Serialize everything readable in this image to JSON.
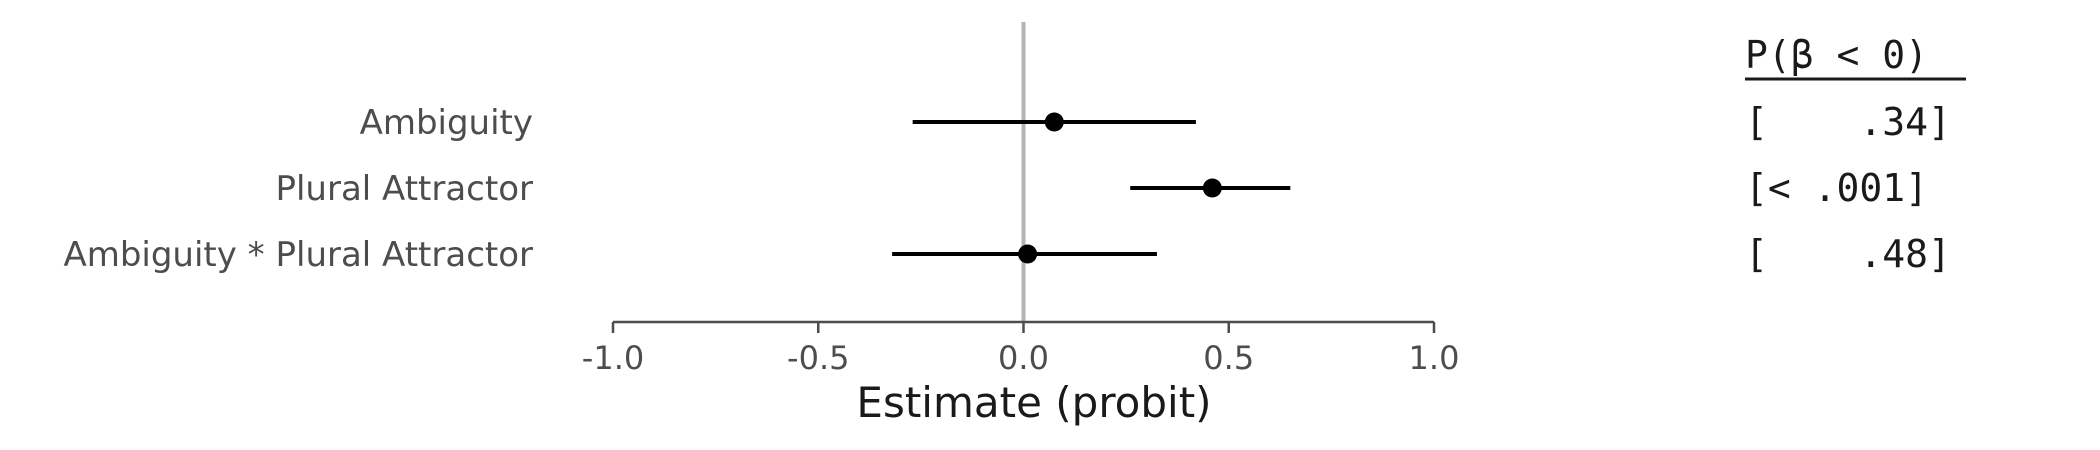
{
  "chart_data": {
    "type": "scatter",
    "subtype": "coefficient-plot",
    "xlabel": "Estimate (probit)",
    "xlim": [
      -1.0,
      1.0
    ],
    "xticks": [
      -1.0,
      -0.5,
      0.0,
      0.5,
      1.0
    ],
    "xtick_labels": [
      "-1.0",
      "-0.5",
      "0.0",
      "0.5",
      "1.0"
    ],
    "reference_line": 0.0,
    "grid": false,
    "rows": [
      {
        "label": "Ambiguity",
        "estimate": 0.075,
        "lower": -0.27,
        "upper": 0.42,
        "p_text": "[    .34]"
      },
      {
        "label": "Plural Attractor",
        "estimate": 0.46,
        "lower": 0.26,
        "upper": 0.65,
        "p_text": "[< .001]"
      },
      {
        "label": "Ambiguity * Plural Attractor",
        "estimate": 0.01,
        "lower": -0.32,
        "upper": 0.325,
        "p_text": "[    .48]"
      }
    ],
    "p_header": "P(β < 0)",
    "colors": {
      "point": "#000000",
      "interval": "#000000",
      "reference_line": "#b3b3b3",
      "axis": "#4d4d4d",
      "label_text": "#4d4d4d"
    }
  }
}
